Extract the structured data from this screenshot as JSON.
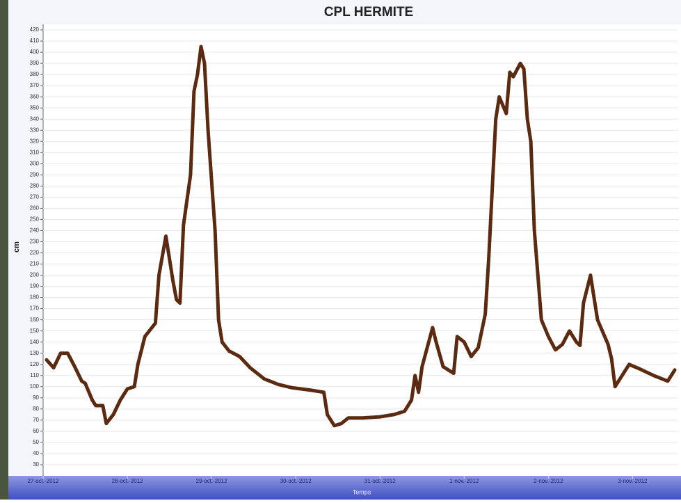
{
  "chart_data": {
    "type": "line",
    "title": "CPL HERMITE",
    "x_label": "Temps",
    "y_label": "cm",
    "x": [
      "2012-10-27 01:00",
      "2012-10-27 03:00",
      "2012-10-27 05:00",
      "2012-10-27 07:00",
      "2012-10-27 09:00",
      "2012-10-27 11:00",
      "2012-10-27 12:00",
      "2012-10-27 14:00",
      "2012-10-27 15:00",
      "2012-10-27 17:00",
      "2012-10-27 18:00",
      "2012-10-27 20:00",
      "2012-10-27 22:00",
      "2012-10-28 00:00",
      "2012-10-28 02:00",
      "2012-10-28 03:00",
      "2012-10-28 05:00",
      "2012-10-28 08:00",
      "2012-10-28 09:00",
      "2012-10-28 11:00",
      "2012-10-28 13:00",
      "2012-10-28 14:00",
      "2012-10-28 15:00",
      "2012-10-28 16:00",
      "2012-10-28 18:00",
      "2012-10-28 19:00",
      "2012-10-28 20:00",
      "2012-10-28 21:00",
      "2012-10-28 22:00",
      "2012-10-28 23:00",
      "2012-10-29 01:00",
      "2012-10-29 02:00",
      "2012-10-29 03:00",
      "2012-10-29 05:00",
      "2012-10-29 08:00",
      "2012-10-29 11:00",
      "2012-10-29 15:00",
      "2012-10-29 19:00",
      "2012-10-29 23:00",
      "2012-10-30 04:00",
      "2012-10-30 08:00",
      "2012-10-30 09:00",
      "2012-10-30 11:00",
      "2012-10-30 13:00",
      "2012-10-30 15:00",
      "2012-10-30 19:00",
      "2012-10-31 00:00",
      "2012-10-31 04:00",
      "2012-10-31 07:00",
      "2012-10-31 09:00",
      "2012-10-31 10:00",
      "2012-10-31 11:00",
      "2012-10-31 12:00",
      "2012-10-31 15:00",
      "2012-10-31 16:00",
      "2012-10-31 18:00",
      "2012-10-31 21:00",
      "2012-10-31 22:00",
      "2012-11-01 00:00",
      "2012-11-01 02:00",
      "2012-11-01 04:00",
      "2012-11-01 06:00",
      "2012-11-01 07:00",
      "2012-11-01 09:00",
      "2012-11-01 10:00",
      "2012-11-01 12:00",
      "2012-11-01 13:00",
      "2012-11-01 14:00",
      "2012-11-01 16:00",
      "2012-11-01 17:00",
      "2012-11-01 18:00",
      "2012-11-01 19:00",
      "2012-11-01 20:00",
      "2012-11-01 22:00",
      "2012-11-02 00:00",
      "2012-11-02 02:00",
      "2012-11-02 04:00",
      "2012-11-02 06:00",
      "2012-11-02 08:00",
      "2012-11-02 09:00",
      "2012-11-02 10:00",
      "2012-11-02 12:00",
      "2012-11-02 14:00",
      "2012-11-02 17:00",
      "2012-11-02 18:00",
      "2012-11-02 19:00",
      "2012-11-02 21:00",
      "2012-11-02 23:00",
      "2012-11-03 02:00",
      "2012-11-03 06:00",
      "2012-11-03 10:00",
      "2012-11-03 12:00"
    ],
    "series": [
      {
        "name": "CPL HERMITE",
        "color": "#5c2a10",
        "values": [
          124,
          117,
          130,
          130,
          118,
          105,
          103,
          88,
          83,
          83,
          67,
          75,
          88,
          98,
          100,
          120,
          145,
          157,
          200,
          235,
          195,
          178,
          175,
          245,
          290,
          365,
          380,
          405,
          390,
          330,
          240,
          160,
          140,
          132,
          127,
          117,
          107,
          102,
          99,
          97,
          95,
          75,
          65,
          67,
          72,
          72,
          73,
          75,
          78,
          88,
          110,
          95,
          118,
          153,
          140,
          118,
          112,
          145,
          140,
          127,
          135,
          165,
          215,
          340,
          360,
          345,
          382,
          378,
          390,
          385,
          340,
          320,
          240,
          160,
          145,
          133,
          138,
          150,
          140,
          137,
          175,
          200,
          160,
          138,
          125,
          100,
          110,
          120,
          116,
          110,
          105,
          115
        ]
      }
    ],
    "xlim": [
      "2012-10-27 00:00",
      "2012-11-03 13:00"
    ],
    "xticks": [
      {
        "value": "2012-10-27 00:00",
        "label": "27-oct.-2012"
      },
      {
        "value": "2012-10-28 00:00",
        "label": "28-oct.-2012"
      },
      {
        "value": "2012-10-29 00:00",
        "label": "29-oct.-2012"
      },
      {
        "value": "2012-10-30 00:00",
        "label": "30-oct.-2012"
      },
      {
        "value": "2012-10-31 00:00",
        "label": "31-oct.-2012"
      },
      {
        "value": "2012-11-01 00:00",
        "label": "1-nov.-2012"
      },
      {
        "value": "2012-11-02 00:00",
        "label": "2-nov.-2012"
      },
      {
        "value": "2012-11-03 00:00",
        "label": "3-nov.-2012"
      }
    ],
    "ylim": [
      20,
      425
    ],
    "yticks": [
      30,
      40,
      50,
      60,
      70,
      80,
      90,
      100,
      110,
      120,
      130,
      140,
      150,
      160,
      170,
      180,
      190,
      200,
      210,
      220,
      230,
      240,
      250,
      260,
      270,
      280,
      290,
      300,
      310,
      320,
      330,
      340,
      350,
      360,
      370,
      380,
      390,
      400,
      410,
      420
    ],
    "grid": true
  }
}
